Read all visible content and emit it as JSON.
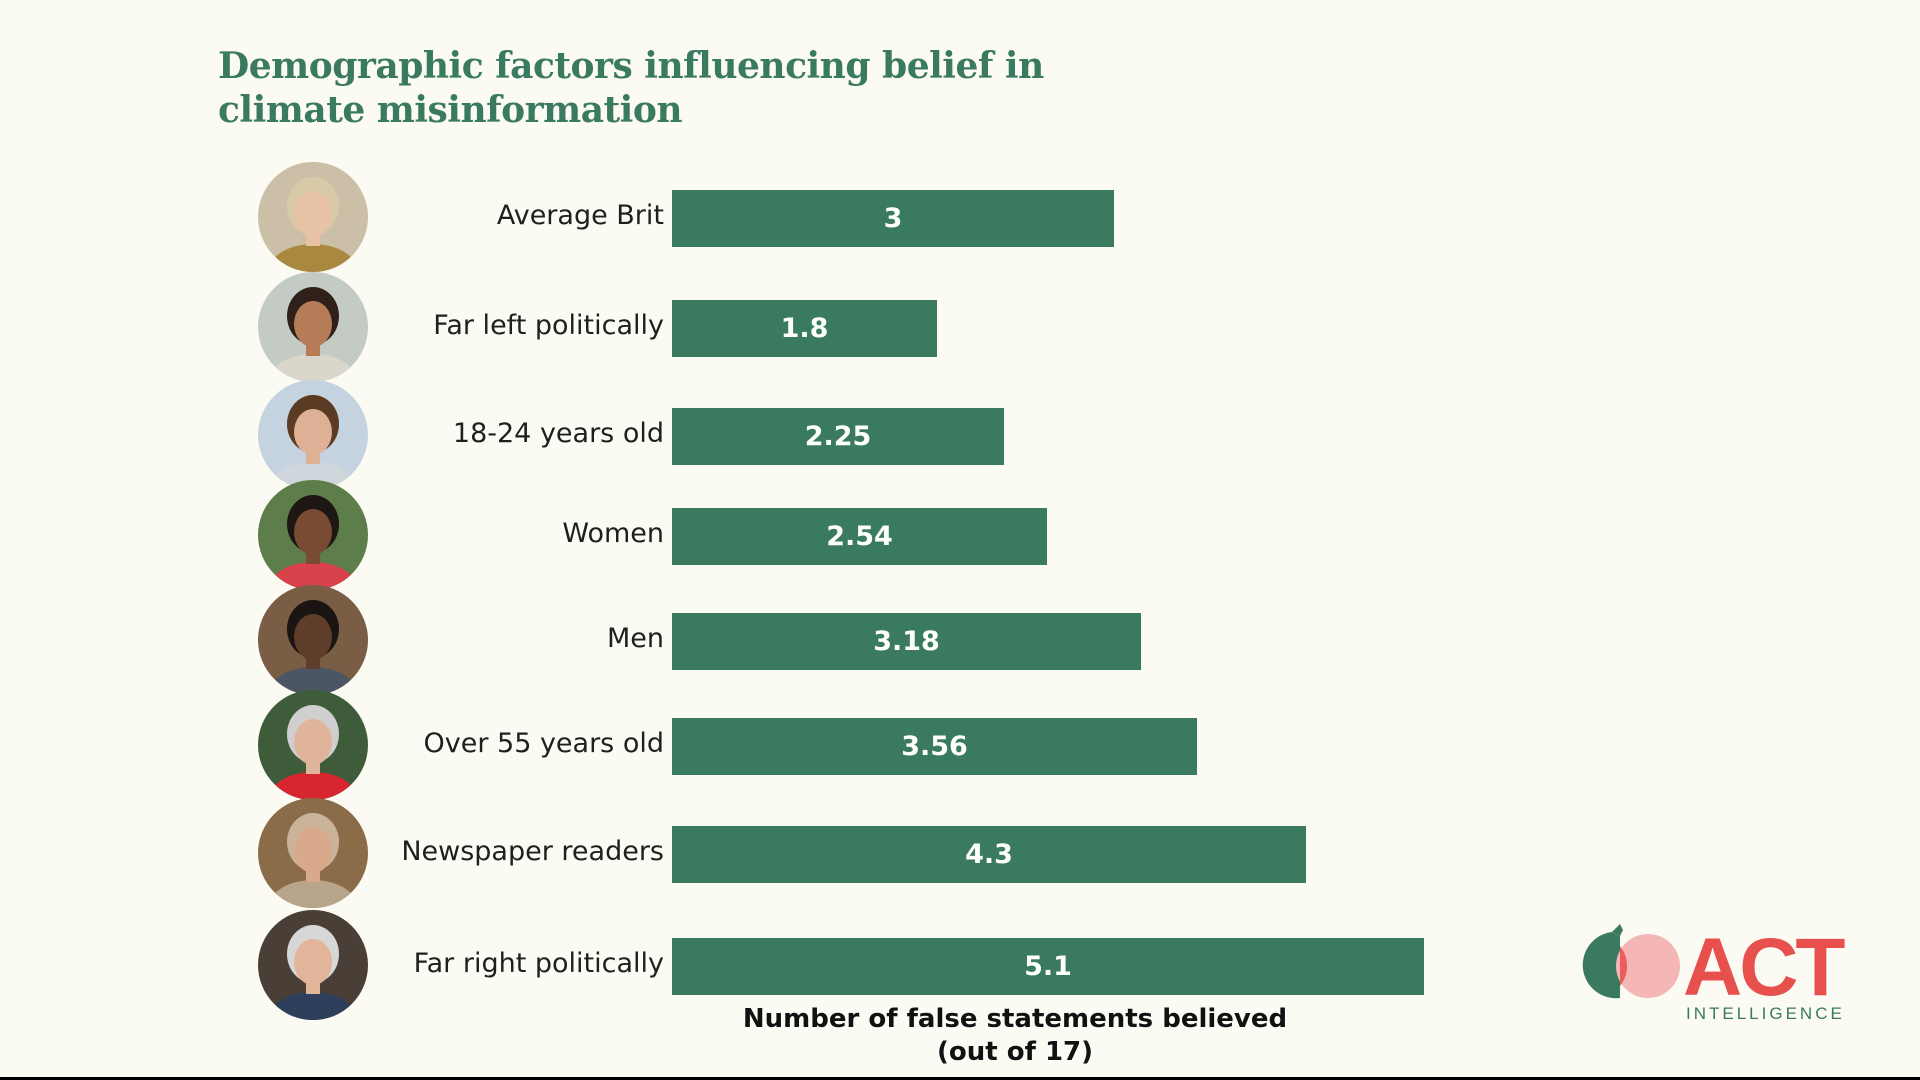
{
  "title": {
    "line1": "Demographic factors influencing belief in",
    "line2": "climate misinformation"
  },
  "chart_data": {
    "type": "bar",
    "orientation": "horizontal",
    "title": "Demographic factors influencing belief in climate misinformation",
    "categories": [
      "Average Brit",
      "Far left politically",
      "18-24 years old",
      "Women",
      "Men",
      "Over 55 years old",
      "Newspaper readers",
      "Far right politically"
    ],
    "values": [
      3,
      1.8,
      2.25,
      2.54,
      3.18,
      3.56,
      4.3,
      5.1
    ],
    "value_labels": [
      "3",
      "1.8",
      "2.25",
      "2.54",
      "3.18",
      "3.56",
      "4.3",
      "5.1"
    ],
    "xlabel_line1": "Number of false statements believed",
    "xlabel_line2": "(out of 17)",
    "xlabel": "Number of false statements believed (out of 17)",
    "ylabel": "",
    "xlim": [
      0,
      5.1
    ],
    "grid": false,
    "legend": "none",
    "bar_color": "#3a7a5f"
  },
  "avatars": [
    {
      "name": "average-brit-avatar-icon",
      "bg": "#cbbfa8",
      "skin": "#e8c2a4",
      "hair": "#d8c9a9",
      "shirt": "#a8893f"
    },
    {
      "name": "far-left-avatar-icon",
      "bg": "#c3cbc4",
      "skin": "#b67c58",
      "hair": "#2f211a",
      "shirt": "#d9d6cc"
    },
    {
      "name": "young-adult-avatar-icon",
      "bg": "#c4d3df",
      "skin": "#deb197",
      "hair": "#5b3b24",
      "shirt": "#cfd6dc"
    },
    {
      "name": "women-avatar-icon",
      "bg": "#5d7d4a",
      "skin": "#7a4b33",
      "hair": "#1d1612",
      "shirt": "#d9414b"
    },
    {
      "name": "men-avatar-icon",
      "bg": "#7a5d45",
      "skin": "#5e3d2a",
      "hair": "#1a1412",
      "shirt": "#4c5564"
    },
    {
      "name": "over-55-avatar-icon",
      "bg": "#3e5c3a",
      "skin": "#e0b49a",
      "hair": "#cfcfcf",
      "shirt": "#d7262f"
    },
    {
      "name": "newspaper-reader-avatar-icon",
      "bg": "#8a6c48",
      "skin": "#d8a98a",
      "hair": "#c9b39a",
      "shirt": "#b9a58c"
    },
    {
      "name": "far-right-avatar-icon",
      "bg": "#4a3f36",
      "skin": "#e2b49a",
      "hair": "#d7d7d7",
      "shirt": "#2e3f5c"
    }
  ],
  "logo": {
    "word": "ACT",
    "sub": "INTELLIGENCE",
    "green": "#3a7a5f",
    "red": "#e8504e",
    "pink": "#f4b7b5"
  }
}
